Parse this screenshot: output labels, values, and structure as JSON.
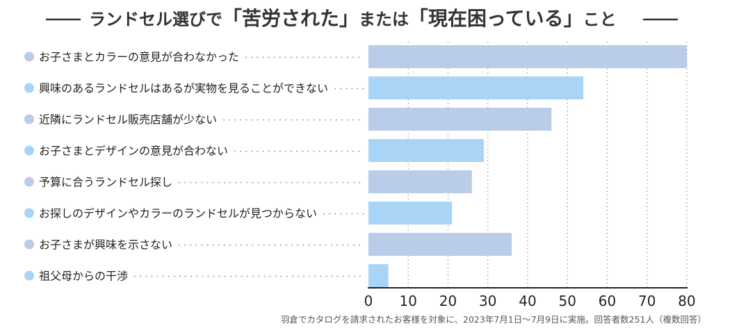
{
  "chart_data": {
    "type": "bar",
    "orientation": "horizontal",
    "title": {
      "prefix": "ランドセル選びで",
      "quote1": "「苦労された」",
      "middle": "または",
      "quote2": "「現在困っている」",
      "suffix": "こと"
    },
    "categories": [
      "お子さまとカラーの意見が合わなかった",
      "興味のあるランドセルはあるが実物を見ることができない",
      "近隣にランドセル販売店舗が少ない",
      "お子さまとデザインの意見が合わない",
      "予算に合うランドセル探し",
      "お探しのデザインやカラーのランドセルが見つからない",
      "お子さまが興味を示さない",
      "祖父母からの干渉"
    ],
    "values": [
      80,
      54,
      46,
      29,
      26,
      21,
      36,
      5
    ],
    "bar_colors": [
      "#b9cce8",
      "#a9d4f5",
      "#b9cce8",
      "#a9d4f5",
      "#b9cce8",
      "#a9d4f5",
      "#b9cce8",
      "#a9d4f5"
    ],
    "xlim": [
      0,
      80
    ],
    "xticks": [
      "0",
      "10",
      "20",
      "30",
      "40",
      "50",
      "60",
      "70",
      "80"
    ],
    "grid": true,
    "note": "羽倉でカタログを請求されたお客様を対象に、2023年7月1日〜7月9日に実施。回答者数251人（複数回答）"
  }
}
